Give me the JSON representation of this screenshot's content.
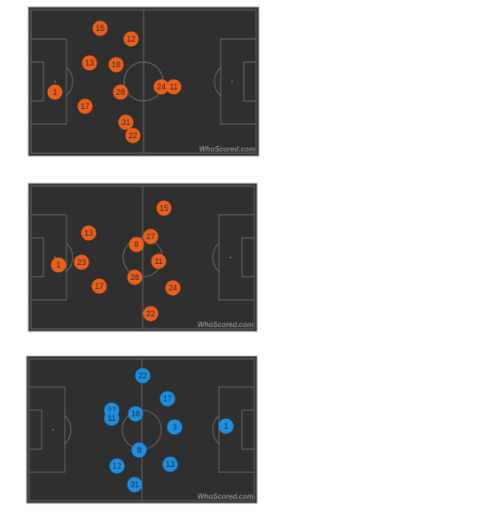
{
  "watermark": "WhoScored.com",
  "pitches": [
    {
      "color": "#ec5f1b",
      "players": [
        "15",
        "12",
        "13",
        "18",
        "1",
        "28",
        "24",
        "11",
        "17",
        "31",
        "22"
      ]
    },
    {
      "color": "#ec5f1b",
      "players": [
        "15",
        "13",
        "27",
        "8",
        "1",
        "23",
        "11",
        "28",
        "17",
        "24",
        "22"
      ]
    },
    {
      "color": "#1b90e3",
      "players": [
        "22",
        "17",
        "27",
        "11",
        "18",
        "3",
        "1",
        "8",
        "12",
        "13",
        "31"
      ]
    }
  ]
}
